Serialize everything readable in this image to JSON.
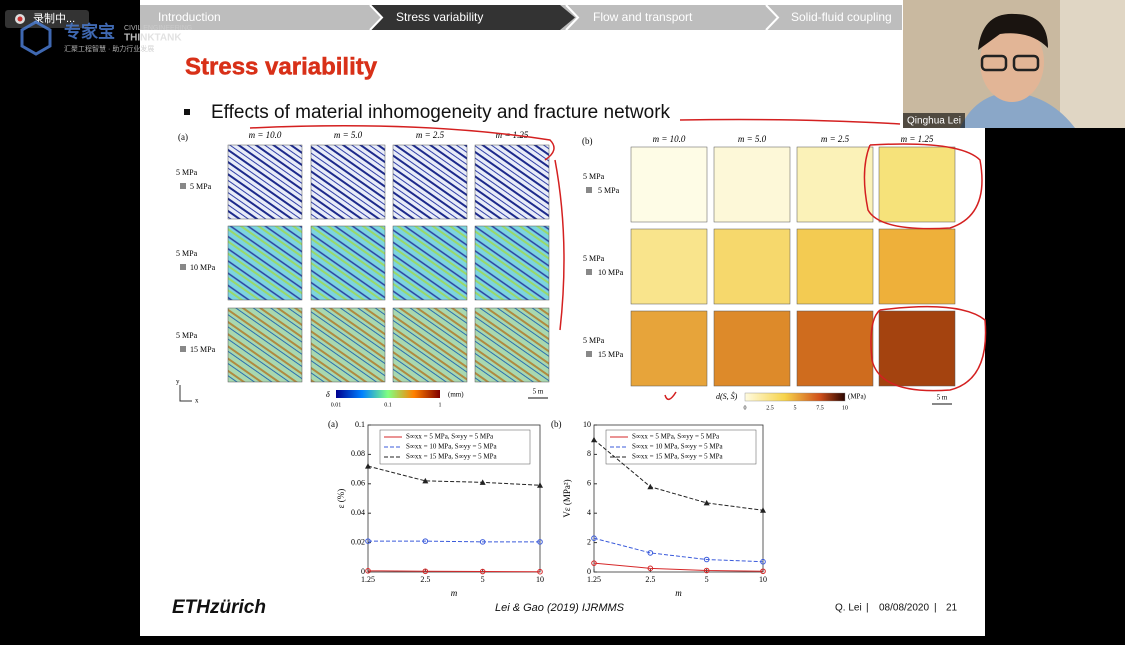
{
  "recording": "录制中...",
  "logo": {
    "name": "专家宝",
    "line1": "CIVIL ENGINEERING",
    "line2": "THINKTANK",
    "slogan": "汇聚工程智慧 · 助力行业发展"
  },
  "nav": [
    "Introduction",
    "Stress variability",
    "Flow and transport",
    "Solid-fluid coupling"
  ],
  "participant": "Qinghua Lei",
  "slide": {
    "title": "Stress variability",
    "bullet": "Effects of material inhomogeneity and fracture network",
    "figure_a": {
      "label": "(a)",
      "columns": [
        "m = 10.0",
        "m = 5.0",
        "m = 2.5",
        "m = 1.25"
      ],
      "rows": [
        [
          "5 MPa",
          "5 MPa"
        ],
        [
          "5 MPa",
          "10 MPa"
        ],
        [
          "5 MPa",
          "15 MPa"
        ]
      ],
      "colorbar_symbol": "δ",
      "colorbar_ticks": [
        "0.01",
        "0.1",
        "1"
      ],
      "unit": "(mm)",
      "scale": "5 m",
      "axis_y": "y",
      "axis_x": "x"
    },
    "figure_b": {
      "label": "(b)",
      "columns": [
        "m = 10.0",
        "m = 5.0",
        "m = 2.5",
        "m = 1.25"
      ],
      "rows": [
        [
          "5 MPa",
          "5 MPa"
        ],
        [
          "5 MPa",
          "10 MPa"
        ],
        [
          "5 MPa",
          "15 MPa"
        ]
      ],
      "colorbar_symbol": "d(S, Ŝ)",
      "colorbar_ticks": [
        "0",
        "2.5",
        "5",
        "7.5",
        "10"
      ],
      "unit": "(MPa)",
      "scale": "5 m"
    },
    "charts": [
      {
        "type": "line",
        "label": "(a)",
        "x_label": "m",
        "y_label": "ε (%)",
        "categories": [
          "1.25",
          "2.5",
          "5",
          "10"
        ],
        "ylim": [
          0,
          0.1
        ],
        "yticks": [
          0,
          0.02,
          0.04,
          0.06,
          0.08,
          0.1
        ],
        "series": [
          {
            "name": "S∞xx = 5 MPa, S∞yy = 5 MPa",
            "color": "#d62728",
            "dash": false,
            "marker": "circle",
            "values": [
              0.0008,
              0.0005,
              0.0003,
              0.0002
            ]
          },
          {
            "name": "S∞xx = 10 MPa, S∞yy = 5 MPa",
            "color": "#3b5bdb",
            "dash": true,
            "marker": "circle",
            "values": [
              0.021,
              0.021,
              0.0205,
              0.0205
            ]
          },
          {
            "name": "S∞xx = 15 MPa, S∞yy = 5 MPa",
            "color": "#222222",
            "dash": true,
            "marker": "triangle",
            "values": [
              0.072,
              0.062,
              0.061,
              0.059
            ]
          }
        ]
      },
      {
        "type": "line",
        "label": "(b)",
        "x_label": "m",
        "y_label": "Vε (MPa²)",
        "categories": [
          "1.25",
          "2.5",
          "5",
          "10"
        ],
        "ylim": [
          0,
          10
        ],
        "yticks": [
          0,
          2,
          4,
          6,
          8,
          10
        ],
        "series": [
          {
            "name": "S∞xx = 5 MPa, S∞yy = 5 MPa",
            "color": "#d62728",
            "dash": false,
            "marker": "circle",
            "values": [
              0.6,
              0.25,
              0.1,
              0.05
            ]
          },
          {
            "name": "S∞xx = 10 MPa, S∞yy = 5 MPa",
            "color": "#3b5bdb",
            "dash": true,
            "marker": "circle",
            "values": [
              2.3,
              1.3,
              0.85,
              0.7
            ]
          },
          {
            "name": "S∞xx = 15 MPa, S∞yy = 5 MPa",
            "color": "#222222",
            "dash": true,
            "marker": "triangle",
            "values": [
              9.0,
              5.8,
              4.7,
              4.2
            ]
          }
        ]
      }
    ],
    "citation": "Lei & Gao (2019) IJRMMS",
    "footer": {
      "logo": "ETHzürich",
      "author": "Q. Lei",
      "date": "08/08/2020",
      "page": "21"
    }
  }
}
